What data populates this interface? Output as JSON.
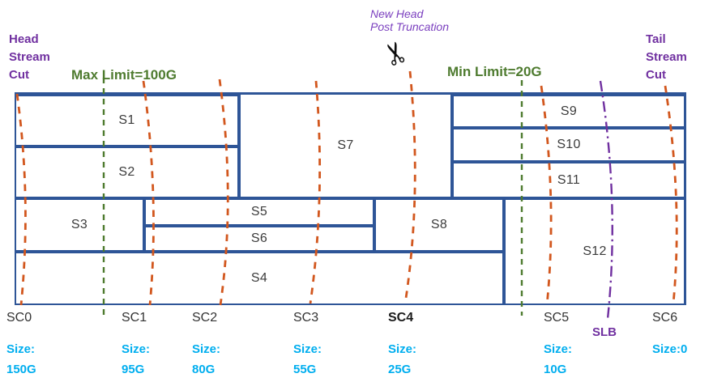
{
  "colors": {
    "border_blue": "#2e5597",
    "cut_orange": "#d2571e",
    "limit_green": "#4e7b2f",
    "purple": "#7030a0",
    "size_cyan": "#00aeef",
    "text_dark": "#3b3b3b"
  },
  "annotations": {
    "head_cut_line1": "Head",
    "head_cut_line2": "Stream",
    "head_cut_line3": "Cut",
    "tail_cut_line1": "Tail",
    "tail_cut_line2": "Stream",
    "tail_cut_line3": "Cut",
    "max_limit": "Max Limit=100G",
    "min_limit": "Min Limit=20G",
    "new_head_line1": "New Head",
    "new_head_line2": "Post Truncation",
    "slb": "SLB",
    "scissors_icon": "✂"
  },
  "segments": [
    "S1",
    "S2",
    "S3",
    "S4",
    "S5",
    "S6",
    "S7",
    "S8",
    "S9",
    "S10",
    "S11",
    "S12"
  ],
  "stream_cuts": [
    {
      "name": "SC0",
      "size_label": "Size:",
      "size_value": "150G",
      "bold": false
    },
    {
      "name": "SC1",
      "size_label": "Size:",
      "size_value": "95G",
      "bold": false
    },
    {
      "name": "SC2",
      "size_label": "Size:",
      "size_value": "80G",
      "bold": false
    },
    {
      "name": "SC3",
      "size_label": "Size:",
      "size_value": "55G",
      "bold": false
    },
    {
      "name": "SC4",
      "size_label": "Size:",
      "size_value": "25G",
      "bold": true
    },
    {
      "name": "SC5",
      "size_label": "Size:",
      "size_value": "10G",
      "bold": false
    },
    {
      "name": "SC6",
      "size_label": "Size:0",
      "size_value": "",
      "bold": false
    }
  ]
}
